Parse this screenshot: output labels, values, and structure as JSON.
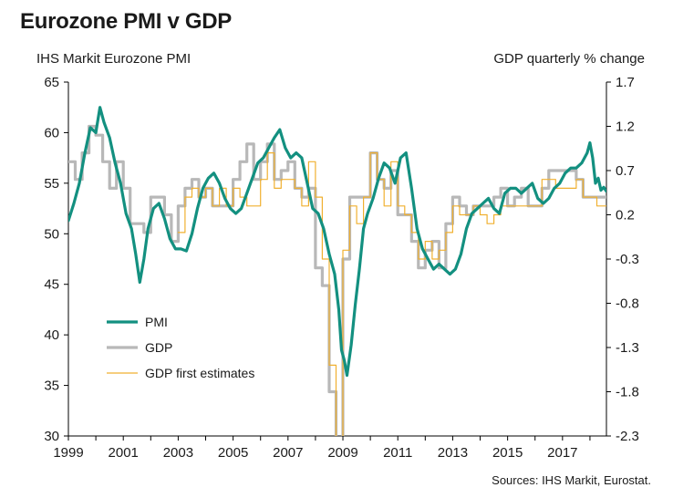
{
  "title": "Eurozone PMI v GDP",
  "left_axis_title": "IHS Markit Eurozone PMI",
  "right_axis_title": "GDP quarterly % change",
  "source": "Sources: IHS Markit, Eurostat.",
  "chart_data": {
    "type": "line",
    "x_range": [
      1999.0,
      2018.6
    ],
    "x_ticks": [
      "1999",
      "2001",
      "2003",
      "2005",
      "2007",
      "2009",
      "2011",
      "2013",
      "2015",
      "2017"
    ],
    "left_axis": {
      "ylim": [
        30,
        65
      ],
      "ticks": [
        "30",
        "35",
        "40",
        "45",
        "50",
        "55",
        "60",
        "65"
      ]
    },
    "right_axis": {
      "ylim": [
        -2.3,
        1.7
      ],
      "ticks": [
        "-2.3",
        "-1.8",
        "-1.3",
        "-0.8",
        "-0.3",
        "0.2",
        "0.7",
        "1.2",
        "1.7"
      ]
    },
    "legend": {
      "position": "bottom-left",
      "entries": [
        "PMI",
        "GDP",
        "GDP first estimates"
      ]
    },
    "colors": {
      "pmi": "#139080",
      "gdp": "#b8b8b8",
      "gdp_first": "#f0b030",
      "axis": "#000000"
    },
    "series": [
      {
        "name": "PMI",
        "axis": "left",
        "x": [
          1999.0,
          1999.2,
          1999.4,
          1999.6,
          1999.8,
          2000.0,
          2000.15,
          2000.3,
          2000.5,
          2000.7,
          2000.9,
          2001.1,
          2001.3,
          2001.45,
          2001.6,
          2001.75,
          2001.9,
          2002.1,
          2002.3,
          2002.5,
          2002.7,
          2002.9,
          2003.1,
          2003.3,
          2003.5,
          2003.7,
          2003.9,
          2004.1,
          2004.3,
          2004.5,
          2004.7,
          2004.9,
          2005.1,
          2005.3,
          2005.5,
          2005.7,
          2005.9,
          2006.1,
          2006.3,
          2006.5,
          2006.7,
          2006.9,
          2007.1,
          2007.3,
          2007.5,
          2007.7,
          2007.9,
          2008.1,
          2008.3,
          2008.5,
          2008.7,
          2008.85,
          2008.95,
          2009.05,
          2009.15,
          2009.3,
          2009.45,
          2009.6,
          2009.75,
          2009.9,
          2010.1,
          2010.3,
          2010.5,
          2010.7,
          2010.9,
          2011.1,
          2011.3,
          2011.5,
          2011.7,
          2011.9,
          2012.1,
          2012.3,
          2012.5,
          2012.7,
          2012.9,
          2013.1,
          2013.3,
          2013.5,
          2013.7,
          2013.9,
          2014.1,
          2014.3,
          2014.5,
          2014.7,
          2014.9,
          2015.1,
          2015.3,
          2015.5,
          2015.7,
          2015.9,
          2016.1,
          2016.3,
          2016.5,
          2016.7,
          2016.9,
          2017.1,
          2017.3,
          2017.5,
          2017.7,
          2017.9,
          2018.0,
          2018.1,
          2018.2,
          2018.3,
          2018.4,
          2018.5,
          2018.6
        ],
        "y": [
          51.3,
          53.0,
          55.0,
          58.0,
          60.5,
          60.0,
          62.5,
          61.0,
          59.5,
          57.0,
          55.0,
          52.0,
          50.5,
          48.0,
          45.2,
          47.5,
          50.5,
          52.5,
          53.0,
          51.5,
          49.5,
          48.5,
          48.5,
          48.3,
          50.0,
          52.5,
          54.5,
          55.5,
          56.0,
          55.0,
          53.5,
          52.5,
          52.0,
          52.5,
          54.0,
          55.5,
          57.0,
          57.5,
          58.5,
          59.5,
          60.3,
          58.5,
          57.5,
          58.0,
          57.5,
          55.0,
          52.5,
          52.0,
          50.5,
          48.0,
          46.0,
          42.5,
          38.5,
          37.5,
          36.0,
          39.0,
          43.0,
          46.5,
          50.5,
          52.0,
          53.5,
          55.5,
          57.0,
          56.5,
          55.0,
          57.5,
          58.0,
          54.5,
          50.5,
          48.5,
          47.5,
          46.5,
          47.0,
          46.5,
          46.0,
          46.5,
          48.0,
          50.5,
          52.0,
          52.5,
          53.0,
          53.5,
          52.5,
          52.0,
          54.0,
          54.5,
          54.5,
          54.0,
          54.5,
          55.0,
          53.5,
          53.0,
          53.5,
          54.5,
          55.0,
          56.0,
          56.5,
          56.5,
          57.0,
          58.0,
          59.0,
          57.5,
          55.0,
          55.5,
          54.3,
          54.6,
          54.2
        ]
      },
      {
        "name": "GDP",
        "axis": "right",
        "x": [
          1999.0,
          1999.25,
          1999.5,
          1999.75,
          2000.0,
          2000.25,
          2000.5,
          2000.75,
          2001.0,
          2001.25,
          2001.5,
          2001.75,
          2002.0,
          2002.25,
          2002.5,
          2002.75,
          2003.0,
          2003.25,
          2003.5,
          2003.75,
          2004.0,
          2004.25,
          2004.5,
          2004.75,
          2005.0,
          2005.25,
          2005.5,
          2005.75,
          2006.0,
          2006.25,
          2006.5,
          2006.75,
          2007.0,
          2007.25,
          2007.5,
          2007.75,
          2008.0,
          2008.25,
          2008.5,
          2008.75,
          2009.0,
          2009.25,
          2009.5,
          2009.75,
          2010.0,
          2010.25,
          2010.5,
          2010.75,
          2011.0,
          2011.25,
          2011.5,
          2011.75,
          2012.0,
          2012.25,
          2012.5,
          2012.75,
          2013.0,
          2013.25,
          2013.5,
          2013.75,
          2014.0,
          2014.25,
          2014.5,
          2014.75,
          2015.0,
          2015.25,
          2015.5,
          2015.75,
          2016.0,
          2016.25,
          2016.5,
          2016.75,
          2017.0,
          2017.25,
          2017.5,
          2017.75,
          2018.0,
          2018.25,
          2018.5
        ],
        "y": [
          0.8,
          0.6,
          0.9,
          1.2,
          1.1,
          0.8,
          0.5,
          0.8,
          0.5,
          0.1,
          0.1,
          0.0,
          0.4,
          0.4,
          0.2,
          -0.1,
          0.3,
          0.5,
          0.6,
          0.4,
          0.5,
          0.3,
          0.3,
          0.3,
          0.6,
          0.8,
          1.0,
          0.6,
          0.8,
          1.0,
          0.6,
          0.7,
          0.8,
          0.5,
          0.4,
          0.5,
          -0.4,
          -0.6,
          -1.8,
          -2.5,
          -0.3,
          0.4,
          0.4,
          0.4,
          0.9,
          0.6,
          0.5,
          0.7,
          0.2,
          0.2,
          -0.1,
          -0.4,
          -0.2,
          -0.1,
          -0.4,
          0.1,
          0.4,
          0.3,
          0.2,
          0.3,
          0.3,
          0.3,
          0.4,
          0.5,
          0.3,
          0.4,
          0.5,
          0.3,
          0.3,
          0.5,
          0.7,
          0.7,
          0.7,
          0.7,
          0.6,
          0.4,
          0.4,
          0.4,
          0.4
        ]
      },
      {
        "name": "GDP first estimates",
        "axis": "right",
        "x": [
          2003.0,
          2003.25,
          2003.5,
          2003.75,
          2004.0,
          2004.25,
          2004.5,
          2004.75,
          2005.0,
          2005.25,
          2005.5,
          2005.75,
          2006.0,
          2006.25,
          2006.5,
          2006.75,
          2007.0,
          2007.25,
          2007.5,
          2007.75,
          2008.0,
          2008.25,
          2008.5,
          2008.75,
          2009.0,
          2009.25,
          2009.5,
          2009.75,
          2010.0,
          2010.25,
          2010.5,
          2010.75,
          2011.0,
          2011.25,
          2011.5,
          2011.75,
          2012.0,
          2012.25,
          2012.5,
          2012.75,
          2013.0,
          2013.25,
          2013.5,
          2013.75,
          2014.0,
          2014.25,
          2014.5,
          2014.75,
          2015.0,
          2015.25,
          2015.5,
          2015.75,
          2016.0,
          2016.25,
          2016.5,
          2016.75,
          2017.0,
          2017.25,
          2017.5,
          2017.75,
          2018.0,
          2018.25,
          2018.5
        ],
        "y": [
          0.0,
          0.4,
          0.5,
          0.4,
          0.5,
          0.3,
          0.5,
          0.3,
          0.5,
          0.4,
          0.3,
          0.3,
          0.6,
          0.9,
          0.5,
          0.6,
          0.6,
          0.5,
          0.3,
          0.8,
          0.4,
          -0.3,
          -1.5,
          -2.5,
          -0.2,
          0.3,
          0.1,
          0.4,
          0.9,
          0.6,
          0.3,
          0.8,
          0.3,
          0.2,
          0.0,
          -0.3,
          -0.1,
          -0.3,
          -0.2,
          0.0,
          0.3,
          0.2,
          0.2,
          0.3,
          0.2,
          0.1,
          0.2,
          0.3,
          0.3,
          0.3,
          0.3,
          0.3,
          0.3,
          0.6,
          0.6,
          0.5,
          0.5,
          0.5,
          0.6,
          0.4,
          0.4,
          0.3,
          0.3
        ]
      }
    ]
  }
}
